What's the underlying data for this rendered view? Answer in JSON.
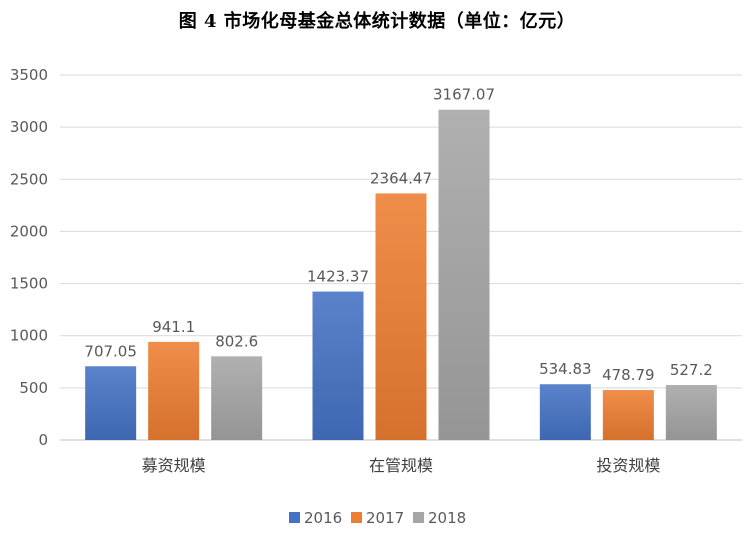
{
  "chart_data": {
    "type": "bar",
    "title": "图 4 市场化母基金总体统计数据（单位：亿元）",
    "xlabel": "",
    "ylabel": "",
    "categories": [
      "募资规模",
      "在管规模",
      "投资规模"
    ],
    "series": [
      {
        "name": "2016",
        "values": [
          707.05,
          1423.37,
          534.83
        ],
        "color": "#4472C4",
        "labels": [
          "707.05",
          "1423.37",
          "534.83"
        ]
      },
      {
        "name": "2017",
        "values": [
          941.1,
          2364.47,
          478.79
        ],
        "color": "#ED7D31",
        "labels": [
          "941.1",
          "2364.47",
          "478.79"
        ]
      },
      {
        "name": "2018",
        "values": [
          802.6,
          3167.07,
          527.2
        ],
        "color": "#A5A5A5",
        "labels": [
          "802.6",
          "3167.07",
          "527.2"
        ]
      }
    ],
    "ylim": [
      0,
      3500
    ],
    "yticks": [
      0,
      500,
      1000,
      1500,
      2000,
      2500,
      3000,
      3500
    ],
    "ytick_labels": [
      "0",
      "500",
      "1000",
      "1500",
      "2000",
      "2500",
      "3000",
      "3500"
    ],
    "grid": true,
    "legend_position": "bottom"
  }
}
